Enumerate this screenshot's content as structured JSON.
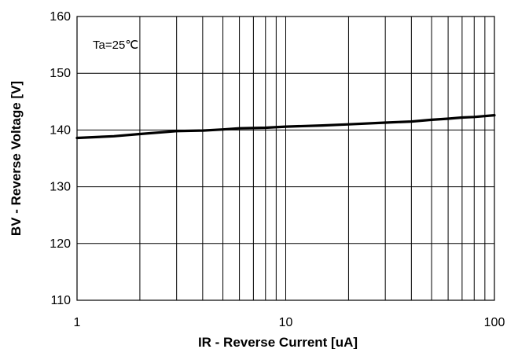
{
  "chart_data": {
    "type": "line",
    "xlabel": "IR - Reverse Current [uA]",
    "ylabel": "BV - Reverse Voltage [V]",
    "xscale": "log",
    "xlim": [
      1,
      100
    ],
    "ylim": [
      110,
      160
    ],
    "x_ticks": [
      1,
      10,
      100
    ],
    "x_tick_labels": [
      "1",
      "10",
      "100"
    ],
    "y_ticks": [
      110,
      120,
      130,
      140,
      150,
      160
    ],
    "y_tick_labels": [
      "110",
      "120",
      "130",
      "140",
      "150",
      "160"
    ],
    "grid": true,
    "annotation": "Ta=25℃",
    "series": [
      {
        "x": [
          1,
          1.5,
          2,
          3,
          4,
          5,
          6,
          8,
          10,
          15,
          20,
          30,
          40,
          50,
          60,
          70,
          80,
          100
        ],
        "y": [
          138.6,
          138.9,
          139.3,
          139.8,
          139.9,
          140.1,
          140.3,
          140.4,
          140.6,
          140.8,
          141.0,
          141.3,
          141.5,
          141.8,
          142.0,
          142.2,
          142.3,
          142.6
        ]
      }
    ]
  }
}
